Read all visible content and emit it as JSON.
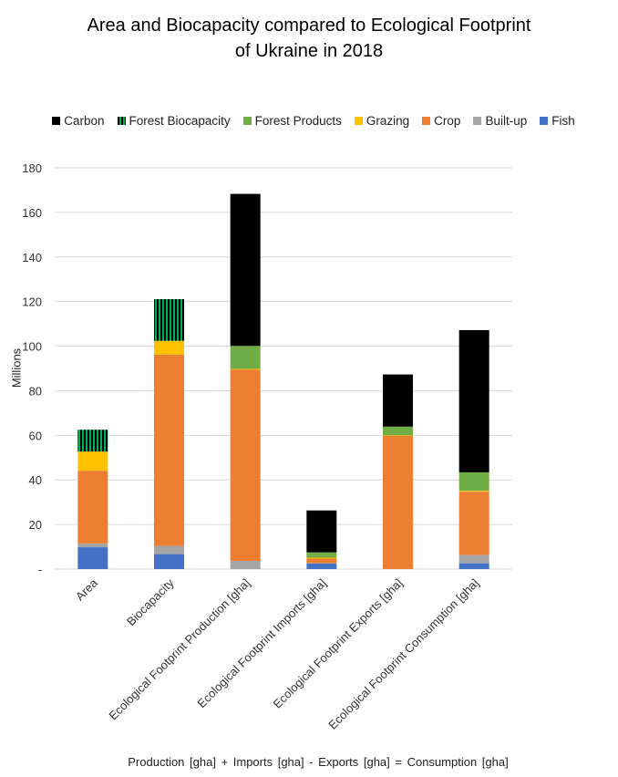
{
  "chart_data": {
    "type": "bar",
    "stacked": true,
    "title": "Area and Biocapacity compared to Ecological Footprint of Ukraine in 2018",
    "title_lines": [
      "Area and Biocapacity compared to Ecological Footprint",
      "of Ukraine in 2018"
    ],
    "ylabel": "Millions",
    "xlabel": "Production  [gha] + Imports [gha] - Exports [gha] = Consumption [gha]",
    "ylim": [
      0,
      180
    ],
    "yticks": [
      0,
      20,
      40,
      60,
      80,
      100,
      120,
      140,
      160,
      180
    ],
    "ytick_labels": [
      "-",
      "20",
      "40",
      "60",
      "80",
      "100",
      "120",
      "140",
      "160",
      "180"
    ],
    "grid": true,
    "legend_position": "top",
    "categories": [
      "Area",
      "Biocapacity",
      "Ecological Footprint Production [gha]",
      "Ecological Footprint Imports [gha]",
      "Ecological Footprint Exports [gha]",
      "Ecological Footprint Consumption [gha]"
    ],
    "series": [
      {
        "name": "Fish",
        "color": "#4472C4",
        "values": [
          9.8,
          6.7,
          0,
          2.6,
          0,
          2.6
        ]
      },
      {
        "name": "Built-up",
        "color": "#A5A5A5",
        "values": [
          1.7,
          3.7,
          3.7,
          0.1,
          0,
          3.7
        ]
      },
      {
        "name": "Crop",
        "color": "#ED7D31",
        "values": [
          32.6,
          85.8,
          85.8,
          2.0,
          59.9,
          28.4
        ]
      },
      {
        "name": "Grazing",
        "color": "#FFC000",
        "values": [
          8.6,
          6.2,
          0.3,
          0.4,
          0.1,
          0.4
        ]
      },
      {
        "name": "Forest Products",
        "color": "#70AD47",
        "values": [
          0,
          0,
          10.3,
          2.4,
          3.9,
          8.3
        ]
      },
      {
        "name": "Forest Biocapacity",
        "color": "#00B050",
        "pattern": "vertical-stripes-black-green",
        "values": [
          9.8,
          18.7,
          0,
          0,
          0,
          0
        ]
      },
      {
        "name": "Carbon",
        "color": "#000000",
        "values": [
          0,
          0,
          68.2,
          18.8,
          23.4,
          63.8
        ]
      }
    ],
    "legend_order": [
      "Carbon",
      "Forest Biocapacity",
      "Forest Products",
      "Grazing",
      "Crop",
      "Built-up",
      "Fish"
    ]
  }
}
